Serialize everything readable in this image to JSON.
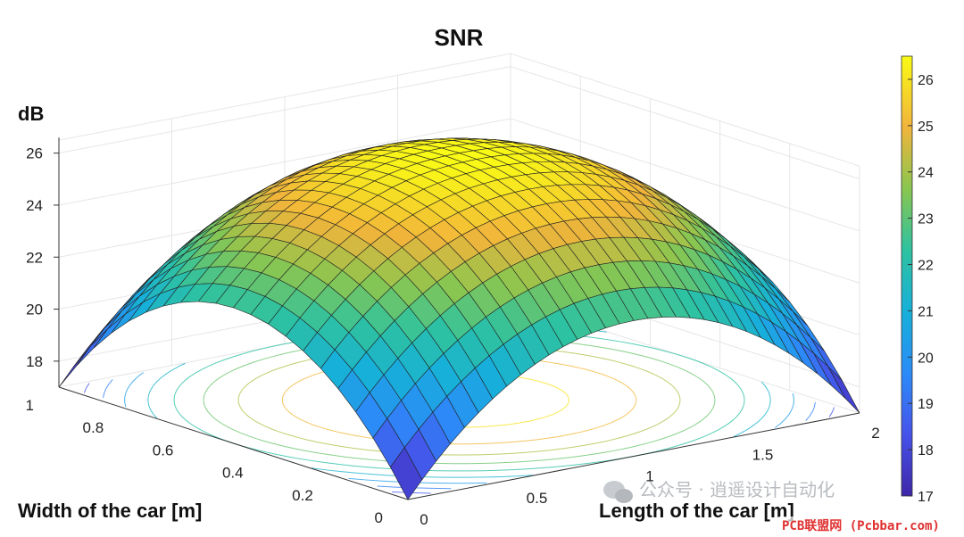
{
  "chart_data": {
    "type": "surface",
    "title": "SNR",
    "zlabel": "dB",
    "xlabel": "Length of the car [m]",
    "ylabel": "Width of the car [m]",
    "xlim": [
      0,
      2
    ],
    "ylim": [
      0,
      1
    ],
    "zlim": [
      17,
      26.5
    ],
    "x_ticks": [
      "0",
      "0.5",
      "1",
      "1.5",
      "2"
    ],
    "y_ticks": [
      "0",
      "0.2",
      "0.4",
      "0.6",
      "0.8",
      "1"
    ],
    "z_ticks": [
      "18",
      "20",
      "22",
      "24",
      "26"
    ],
    "colorbar": {
      "range": [
        17,
        26.5
      ],
      "ticks": [
        "17",
        "18",
        "19",
        "20",
        "21",
        "22",
        "23",
        "24",
        "25",
        "26"
      ],
      "colormap": "parula"
    },
    "surface": {
      "peak_dB": 26.5,
      "peak_at": [
        1,
        0.5
      ],
      "corner_dB": 17,
      "grid": [
        32,
        20
      ],
      "shape": "dome, maximum at center, minimum at corners"
    },
    "contour_projection": true
  },
  "watermark": {
    "wechat": "公众号 · 逍遥设计自动化",
    "site": "PCB联盟网 (Pcbbar.com)"
  },
  "colors": {
    "background": "#ffffff",
    "grid": "#e6e6e6",
    "mesh_edge": "#222222"
  }
}
